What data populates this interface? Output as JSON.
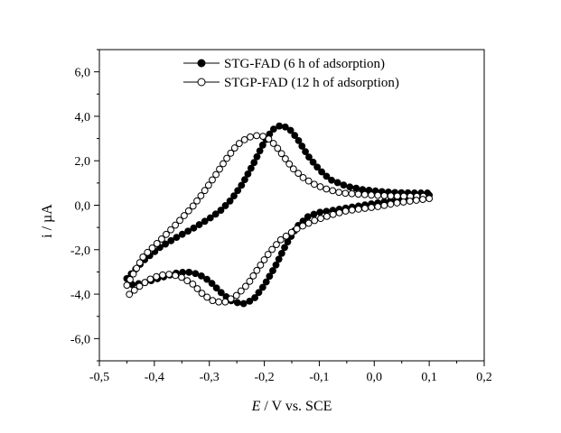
{
  "chart_data": {
    "type": "scatter",
    "title": "",
    "xlabel": "E / V vs. SCE",
    "xlabel_italic_part": "E",
    "xlabel_rest": " / V vs. SCE",
    "ylabel": "i / µA",
    "xlim": [
      -0.5,
      0.2
    ],
    "ylim": [
      -7.0,
      7.0
    ],
    "xticks": [
      -0.5,
      -0.4,
      -0.3,
      -0.2,
      -0.1,
      0.0,
      0.1,
      0.2
    ],
    "xtick_labels": [
      "-0,5",
      "-0,4",
      "-0,3",
      "-0,2",
      "-0,1",
      "0,0",
      "0,1",
      "0,2"
    ],
    "yticks": [
      -6,
      -4,
      -2,
      0,
      2,
      4,
      6
    ],
    "ytick_labels": [
      "-6,0",
      "-4,0",
      "-2,0",
      "0,0",
      "2,0",
      "4,0",
      "6,0"
    ],
    "grid": false,
    "legend_position": "top-center",
    "series": [
      {
        "name": "STG-FAD (6 h of adsorption)",
        "marker": "filled-circle",
        "color": "#000000",
        "anodic": {
          "x": [
            -0.45,
            -0.42,
            -0.39,
            -0.36,
            -0.33,
            -0.3,
            -0.28,
            -0.26,
            -0.24,
            -0.22,
            -0.2,
            -0.185,
            -0.17,
            -0.155,
            -0.14,
            -0.12,
            -0.1,
            -0.08,
            -0.05,
            -0.02,
            0.01,
            0.04,
            0.07,
            0.1
          ],
          "y": [
            -3.3,
            -2.5,
            -1.9,
            -1.45,
            -1.05,
            -0.6,
            -0.25,
            0.25,
            0.95,
            1.85,
            2.85,
            3.4,
            3.6,
            3.45,
            3.0,
            2.2,
            1.6,
            1.15,
            0.85,
            0.7,
            0.62,
            0.57,
            0.55,
            0.55
          ]
        },
        "cathodic": {
          "x": [
            0.1,
            0.07,
            0.04,
            0.01,
            -0.02,
            -0.05,
            -0.08,
            -0.1,
            -0.12,
            -0.14,
            -0.16,
            -0.18,
            -0.2,
            -0.22,
            -0.24,
            -0.26,
            -0.28,
            -0.3,
            -0.32,
            -0.34,
            -0.36,
            -0.38,
            -0.4,
            -0.42,
            -0.45
          ],
          "y": [
            0.45,
            0.35,
            0.25,
            0.12,
            0.0,
            -0.12,
            -0.25,
            -0.32,
            -0.5,
            -0.95,
            -1.75,
            -2.75,
            -3.6,
            -4.25,
            -4.45,
            -4.3,
            -3.9,
            -3.4,
            -3.1,
            -3.0,
            -3.05,
            -3.2,
            -3.35,
            -3.5,
            -3.6
          ]
        }
      },
      {
        "name": "STGP-FAD (12 h of adsorption)",
        "marker": "open-circle",
        "color": "#000000",
        "anodic": {
          "x": [
            -0.45,
            -0.42,
            -0.39,
            -0.36,
            -0.33,
            -0.31,
            -0.29,
            -0.27,
            -0.25,
            -0.23,
            -0.21,
            -0.195,
            -0.18,
            -0.165,
            -0.15,
            -0.13,
            -0.11,
            -0.09,
            -0.06,
            -0.03,
            0.0,
            0.03,
            0.06,
            0.09,
            0.1
          ],
          "y": [
            -3.6,
            -2.3,
            -1.6,
            -0.85,
            -0.05,
            0.6,
            1.3,
            2.05,
            2.7,
            3.05,
            3.15,
            3.05,
            2.7,
            2.2,
            1.7,
            1.25,
            0.95,
            0.75,
            0.55,
            0.5,
            0.45,
            0.42,
            0.4,
            0.4,
            0.45
          ]
        },
        "cathodic": {
          "x": [
            0.1,
            0.07,
            0.04,
            0.01,
            -0.02,
            -0.05,
            -0.08,
            -0.11,
            -0.14,
            -0.17,
            -0.19,
            -0.21,
            -0.23,
            -0.25,
            -0.27,
            -0.29,
            -0.31,
            -0.33,
            -0.35,
            -0.37,
            -0.39,
            -0.41,
            -0.43,
            -0.45
          ],
          "y": [
            0.3,
            0.2,
            0.1,
            -0.05,
            -0.15,
            -0.25,
            -0.45,
            -0.7,
            -1.05,
            -1.55,
            -2.1,
            -2.8,
            -3.55,
            -4.05,
            -4.35,
            -4.35,
            -4.05,
            -3.55,
            -3.25,
            -3.1,
            -3.15,
            -3.35,
            -3.7,
            -4.1
          ]
        }
      }
    ]
  }
}
